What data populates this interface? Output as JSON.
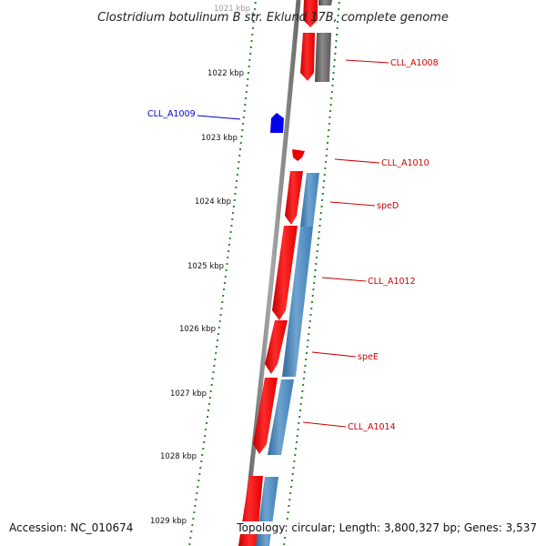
{
  "title": "Clostridium botulinum B str. Eklund 17B, complete genome",
  "footer": {
    "accession": "Accession: NC_010674",
    "summary": "Topology: circular; Length: 3,800,327 bp; Genes: 3,537"
  },
  "scale": {
    "tick_labels": [
      "1021 kbp",
      "1022 kbp",
      "1023 kbp",
      "1024 kbp",
      "1025 kbp",
      "1026 kbp",
      "1027 kbp",
      "1028 kbp",
      "1029 kbp"
    ],
    "tick_color": "#2a8a2a"
  },
  "gene_labels": [
    {
      "label": "CLL_A1008",
      "color": "#cc0000"
    },
    {
      "label": "CLL_A1009",
      "color": "#0000cc"
    },
    {
      "label": "CLL_A1010",
      "color": "#cc0000"
    },
    {
      "label": "speD",
      "color": "#cc0000"
    },
    {
      "label": "CLL_A1012",
      "color": "#cc0000"
    },
    {
      "label": "speE",
      "color": "#cc0000"
    },
    {
      "label": "CLL_A1014",
      "color": "#cc0000"
    }
  ],
  "colors": {
    "backbone": "#808080",
    "cds_forward": "#ff1010",
    "cds_reverse": "#0000ee",
    "gene_track": "#4682b4",
    "pseudo_track": "#666666"
  }
}
